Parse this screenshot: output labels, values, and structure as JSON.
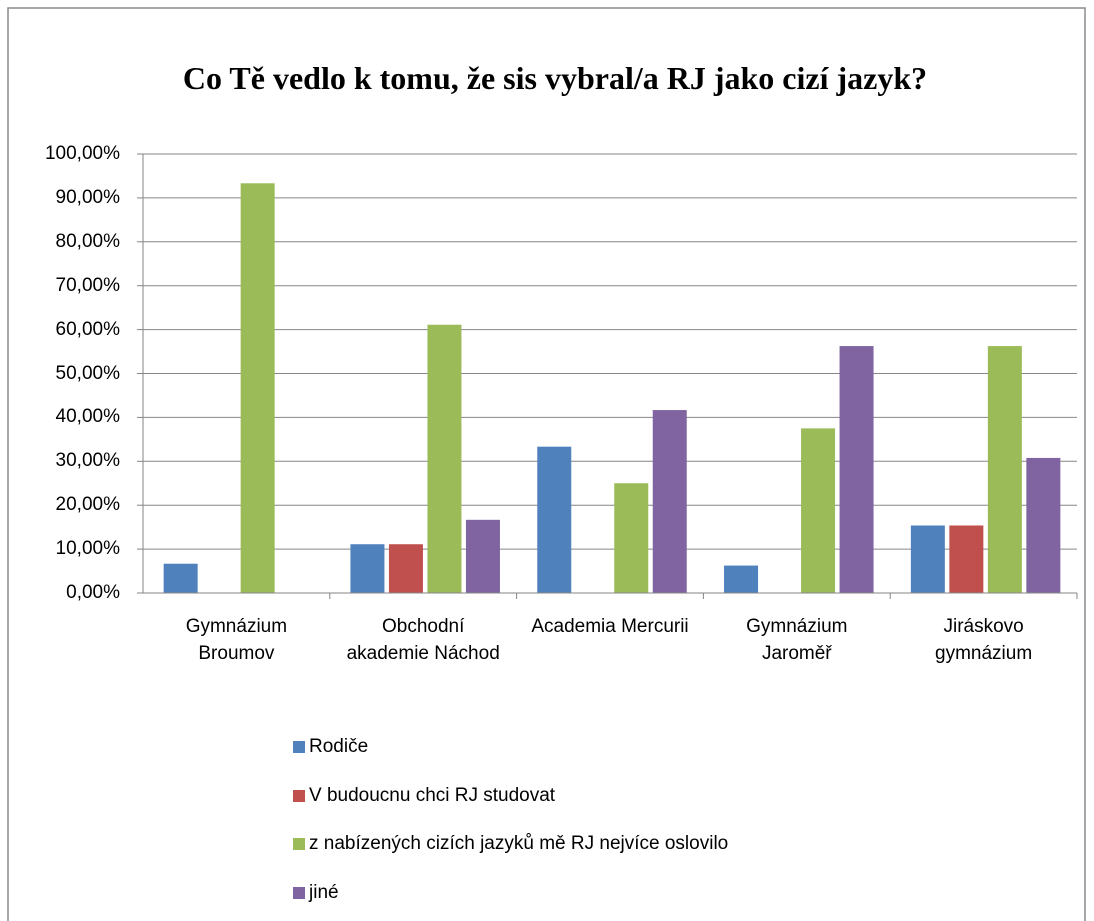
{
  "chart_data": {
    "type": "bar",
    "title": "Co Tě vedlo k tomu, že sis vybral/a RJ jako cizí jazyk?",
    "categories": [
      "Gymnázium Broumov",
      "Obchodní akademie Náchod",
      "Academia Mercurii",
      "Gymnázium Jaroměř",
      "Jiráskovo gymnázium"
    ],
    "series": [
      {
        "name": "Rodiče",
        "color": "#4f81bd",
        "values": [
          6.67,
          11.11,
          33.33,
          6.25,
          15.38
        ]
      },
      {
        "name": "V budoucnu chci RJ studovat",
        "color": "#c0504d",
        "values": [
          0,
          11.11,
          0,
          0,
          15.38
        ]
      },
      {
        "name": "z nabízených cizích jazyků mě RJ nejvíce oslovilo",
        "color": "#9bbb59",
        "values": [
          93.33,
          61.11,
          25,
          37.5,
          56.25
        ]
      },
      {
        "name": "jiné",
        "color": "#8064a2",
        "values": [
          0,
          16.67,
          41.67,
          56.25,
          30.77
        ]
      }
    ],
    "ylim": [
      0,
      100
    ],
    "yticks": [
      {
        "value": 0,
        "label": "0,00%"
      },
      {
        "value": 10,
        "label": "10,00%"
      },
      {
        "value": 20,
        "label": "20,00%"
      },
      {
        "value": 30,
        "label": "30,00%"
      },
      {
        "value": 40,
        "label": "40,00%"
      },
      {
        "value": 50,
        "label": "50,00%"
      },
      {
        "value": 60,
        "label": "60,00%"
      },
      {
        "value": 70,
        "label": "70,00%"
      },
      {
        "value": 80,
        "label": "80,00%"
      },
      {
        "value": 90,
        "label": "90,00%"
      },
      {
        "value": 100,
        "label": "100,00%"
      }
    ],
    "grid": true,
    "legend": "bottom"
  }
}
